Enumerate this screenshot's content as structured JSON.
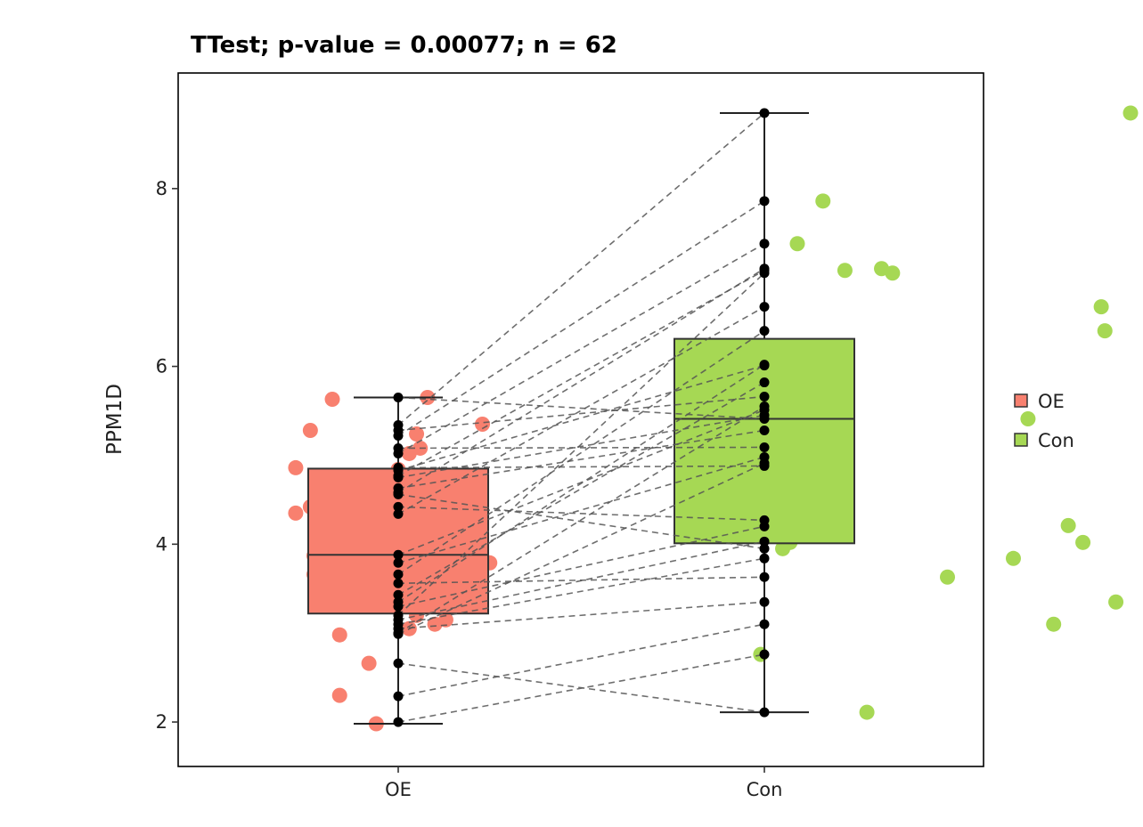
{
  "chart_data": {
    "type": "box",
    "title": "TTest; p-value = 0.00077; n = 62",
    "xlabel": "",
    "ylabel": "PPM1D",
    "categories": [
      "OE",
      "Con"
    ],
    "ylim": [
      1.5,
      9.3
    ],
    "yticks": [
      2,
      4,
      6,
      8
    ],
    "colors": {
      "OE": "#F8806F",
      "Con": "#A6D854"
    },
    "boxes": [
      {
        "group": "OE",
        "min": 1.98,
        "q1": 3.22,
        "median": 3.88,
        "q3": 4.85,
        "max": 5.65
      },
      {
        "group": "Con",
        "min": 2.11,
        "q1": 4.01,
        "median": 5.41,
        "q3": 6.31,
        "max": 8.85
      }
    ],
    "pairs": [
      {
        "oe": 5.65,
        "con": 5.41
      },
      {
        "oe": 5.34,
        "con": 8.85
      },
      {
        "oe": 5.28,
        "con": 5.66
      },
      {
        "oe": 5.22,
        "con": 7.86
      },
      {
        "oe": 5.08,
        "con": 5.09
      },
      {
        "oe": 5.02,
        "con": 7.38
      },
      {
        "oe": 4.86,
        "con": 4.88
      },
      {
        "oe": 4.83,
        "con": 6.01
      },
      {
        "oe": 4.77,
        "con": 7.08
      },
      {
        "oe": 4.63,
        "con": 5.28
      },
      {
        "oe": 4.56,
        "con": 3.95
      },
      {
        "oe": 4.42,
        "con": 4.27
      },
      {
        "oe": 4.34,
        "con": 6.67
      },
      {
        "oe": 3.88,
        "con": 5.51
      },
      {
        "oe": 3.79,
        "con": 4.98
      },
      {
        "oe": 3.66,
        "con": 6.4
      },
      {
        "oe": 3.56,
        "con": 3.63
      },
      {
        "oe": 3.43,
        "con": 5.82
      },
      {
        "oe": 3.3,
        "con": 4.2
      },
      {
        "oe": 3.2,
        "con": 7.05
      },
      {
        "oe": 3.15,
        "con": 4.03
      },
      {
        "oe": 3.1,
        "con": 3.84
      },
      {
        "oe": 3.05,
        "con": 3.35
      },
      {
        "oe": 2.99,
        "con": 4.91
      },
      {
        "oe": 2.66,
        "con": 2.11
      },
      {
        "oe": 2.29,
        "con": 3.1
      },
      {
        "oe": 2.0,
        "con": 2.76
      },
      {
        "oe": 4.58,
        "con": 7.1
      },
      {
        "oe": 4.75,
        "con": 5.45
      },
      {
        "oe": 3.35,
        "con": 6.02
      },
      {
        "oe": 3.0,
        "con": 5.55
      }
    ],
    "jitter": {
      "OE": [
        {
          "x": 0.32,
          "y": 5.63
        },
        {
          "x": 0.26,
          "y": 5.28
        },
        {
          "x": 0.3,
          "y": 4.77
        },
        {
          "x": 0.22,
          "y": 4.86
        },
        {
          "x": 0.22,
          "y": 4.35
        },
        {
          "x": 0.26,
          "y": 4.42
        },
        {
          "x": 0.27,
          "y": 3.87
        },
        {
          "x": 0.27,
          "y": 3.66
        },
        {
          "x": 0.31,
          "y": 3.3
        },
        {
          "x": 0.34,
          "y": 2.98
        },
        {
          "x": 0.34,
          "y": 2.3
        },
        {
          "x": 0.42,
          "y": 2.66
        },
        {
          "x": 0.44,
          "y": 1.98
        },
        {
          "x": 0.58,
          "y": 5.65
        },
        {
          "x": 0.55,
          "y": 5.24
        },
        {
          "x": 0.56,
          "y": 5.08
        },
        {
          "x": 0.53,
          "y": 5.02
        },
        {
          "x": 0.5,
          "y": 4.84
        },
        {
          "x": 0.67,
          "y": 4.63
        },
        {
          "x": 0.64,
          "y": 4.56
        },
        {
          "x": 0.73,
          "y": 5.35
        },
        {
          "x": 0.64,
          "y": 3.88
        },
        {
          "x": 0.75,
          "y": 3.79
        },
        {
          "x": 0.55,
          "y": 3.2
        },
        {
          "x": 0.53,
          "y": 3.05
        },
        {
          "x": 0.6,
          "y": 3.1
        },
        {
          "x": 0.63,
          "y": 3.15
        }
      ],
      "Con": [
        {
          "x": 1.66,
          "y": 7.86
        },
        {
          "x": 1.59,
          "y": 7.38
        },
        {
          "x": 1.72,
          "y": 7.08
        },
        {
          "x": 1.82,
          "y": 7.1
        },
        {
          "x": 1.85,
          "y": 7.05
        },
        {
          "x": 1.57,
          "y": 6.01
        },
        {
          "x": 1.58,
          "y": 5.55
        },
        {
          "x": 1.54,
          "y": 5.28
        },
        {
          "x": 1.51,
          "y": 5.09
        },
        {
          "x": 1.6,
          "y": 4.88
        },
        {
          "x": 1.55,
          "y": 3.95
        },
        {
          "x": 1.57,
          "y": 4.02
        },
        {
          "x": 1.49,
          "y": 2.76
        },
        {
          "x": 1.78,
          "y": 2.11
        },
        {
          "x": 2.0,
          "y": 3.63
        },
        {
          "x": 2.22,
          "y": 5.41
        },
        {
          "x": 2.18,
          "y": 3.84
        },
        {
          "x": 2.29,
          "y": 3.1
        },
        {
          "x": 2.33,
          "y": 4.21
        },
        {
          "x": 2.37,
          "y": 4.02
        },
        {
          "x": 2.42,
          "y": 6.67
        },
        {
          "x": 2.43,
          "y": 6.4
        },
        {
          "x": 2.46,
          "y": 3.35
        },
        {
          "x": 2.5,
          "y": 8.85
        }
      ]
    },
    "legend": {
      "position": "right",
      "entries": [
        "OE",
        "Con"
      ]
    },
    "grid": false
  }
}
